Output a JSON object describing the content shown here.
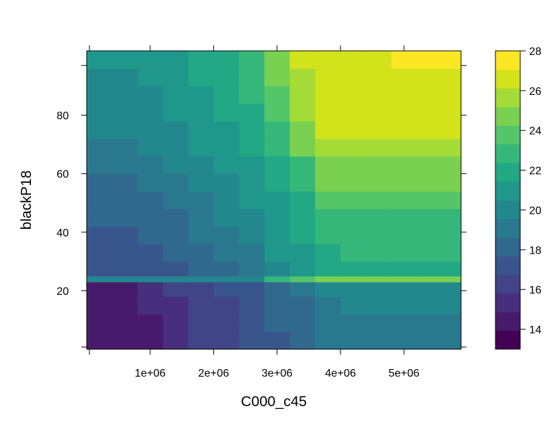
{
  "chart_data": {
    "type": "heatmap",
    "title": "",
    "xlabel": "C000_c45",
    "ylabel": "blackP18",
    "xlim": [
      0,
      5900000
    ],
    "ylim": [
      0,
      102
    ],
    "x_ticks": [
      {
        "value": 1000000,
        "label": "1e+06"
      },
      {
        "value": 2000000,
        "label": "2e+06"
      },
      {
        "value": 3000000,
        "label": "3e+06"
      },
      {
        "value": 4000000,
        "label": "4e+06"
      },
      {
        "value": 5000000,
        "label": "5e+06"
      }
    ],
    "y_ticks": [
      {
        "value": 20,
        "label": "20"
      },
      {
        "value": 40,
        "label": "40"
      },
      {
        "value": 60,
        "label": "60"
      },
      {
        "value": 80,
        "label": "80"
      }
    ],
    "colorbar": {
      "range": [
        13,
        28
      ],
      "ticks": [
        {
          "value": 14,
          "label": "14"
        },
        {
          "value": 16,
          "label": "16"
        },
        {
          "value": 18,
          "label": "18"
        },
        {
          "value": 20,
          "label": "20"
        },
        {
          "value": 22,
          "label": "22"
        },
        {
          "value": 24,
          "label": "24"
        },
        {
          "value": 26,
          "label": "26"
        },
        {
          "value": 28,
          "label": "28"
        }
      ],
      "colors": [
        "#440154",
        "#481a6c",
        "#472f7d",
        "#414487",
        "#39568c",
        "#31688e",
        "#2a788e",
        "#23888e",
        "#1f988b",
        "#22a884",
        "#35b779",
        "#54c568",
        "#7ad151",
        "#a5db36",
        "#d2e21b",
        "#fde725"
      ]
    },
    "x_edges": [
      0,
      400000,
      800000,
      1200000,
      1600000,
      2000000,
      2400000,
      2800000,
      3200000,
      3600000,
      4000000,
      4400000,
      4800000,
      5200000,
      5900000
    ],
    "y_edges": [
      0,
      6,
      12,
      18,
      23,
      25,
      30,
      36,
      42,
      48,
      54,
      60,
      66,
      72,
      78,
      84,
      90,
      96,
      102
    ],
    "z": [
      [
        14.0,
        14.2,
        14.6,
        15.2,
        15.9,
        16.3,
        16.8,
        17.6,
        18.2,
        19.0,
        19.2,
        19.4,
        19.4,
        19.4
      ],
      [
        14.0,
        14.3,
        14.8,
        15.4,
        16.0,
        16.4,
        16.9,
        17.8,
        18.4,
        19.2,
        19.4,
        19.5,
        19.5,
        19.5
      ],
      [
        14.2,
        14.5,
        15.2,
        15.6,
        16.2,
        16.7,
        17.2,
        18.0,
        18.6,
        19.4,
        19.6,
        19.6,
        19.6,
        19.6
      ],
      [
        14.4,
        14.8,
        15.5,
        15.9,
        16.5,
        17.0,
        17.5,
        18.3,
        18.9,
        19.6,
        19.7,
        19.7,
        19.7,
        19.7
      ],
      [
        19.6,
        19.6,
        19.6,
        19.6,
        19.6,
        19.6,
        20.2,
        22.4,
        23.6,
        25.0,
        25.0,
        25.0,
        25.0,
        25.0
      ],
      [
        16.8,
        16.8,
        17.4,
        17.6,
        17.9,
        18.3,
        19.0,
        20.2,
        21.0,
        21.6,
        22.0,
        22.0,
        22.0,
        22.0
      ],
      [
        16.8,
        16.8,
        17.5,
        17.7,
        18.2,
        18.7,
        19.5,
        20.5,
        21.2,
        22.0,
        22.4,
        22.4,
        22.4,
        22.4
      ],
      [
        17.6,
        17.6,
        18.0,
        18.3,
        18.8,
        19.2,
        19.9,
        20.8,
        21.5,
        22.4,
        22.8,
        22.8,
        22.8,
        22.8
      ],
      [
        17.8,
        17.8,
        18.2,
        18.6,
        19.1,
        19.6,
        20.3,
        21.1,
        21.8,
        22.8,
        23.2,
        23.2,
        23.2,
        23.2
      ],
      [
        18.2,
        18.2,
        18.6,
        19.0,
        19.4,
        19.9,
        20.6,
        21.4,
        22.1,
        23.5,
        23.9,
        23.9,
        23.9,
        23.9
      ],
      [
        18.5,
        18.5,
        18.9,
        19.4,
        19.8,
        20.3,
        21.0,
        21.7,
        22.4,
        24.3,
        24.6,
        24.6,
        24.6,
        24.6
      ],
      [
        18.9,
        18.9,
        19.3,
        19.8,
        20.2,
        20.7,
        21.4,
        22.1,
        23.2,
        25.0,
        25.0,
        25.0,
        25.0,
        25.0
      ],
      [
        19.3,
        19.3,
        19.7,
        20.1,
        20.6,
        21.1,
        21.7,
        22.6,
        24.3,
        25.4,
        25.6,
        25.6,
        25.6,
        25.6
      ],
      [
        19.6,
        19.6,
        19.9,
        20.4,
        20.9,
        21.4,
        22.0,
        23.2,
        24.8,
        26.2,
        26.4,
        26.4,
        26.4,
        26.4
      ],
      [
        19.8,
        19.8,
        20.1,
        20.6,
        21.1,
        21.6,
        22.3,
        23.6,
        25.2,
        26.6,
        26.7,
        26.7,
        26.7,
        26.7
      ],
      [
        20.0,
        20.0,
        20.4,
        20.9,
        21.4,
        21.9,
        22.6,
        24.1,
        25.6,
        26.8,
        26.8,
        26.8,
        26.8,
        26.8
      ],
      [
        20.3,
        20.3,
        20.6,
        21.1,
        21.6,
        22.1,
        22.8,
        24.6,
        26.0,
        26.8,
        26.8,
        26.8,
        26.8,
        26.8
      ],
      [
        20.6,
        20.6,
        20.9,
        21.3,
        21.8,
        22.3,
        23.0,
        25.0,
        26.3,
        26.9,
        26.9,
        26.9,
        27.6,
        28.0
      ]
    ]
  }
}
